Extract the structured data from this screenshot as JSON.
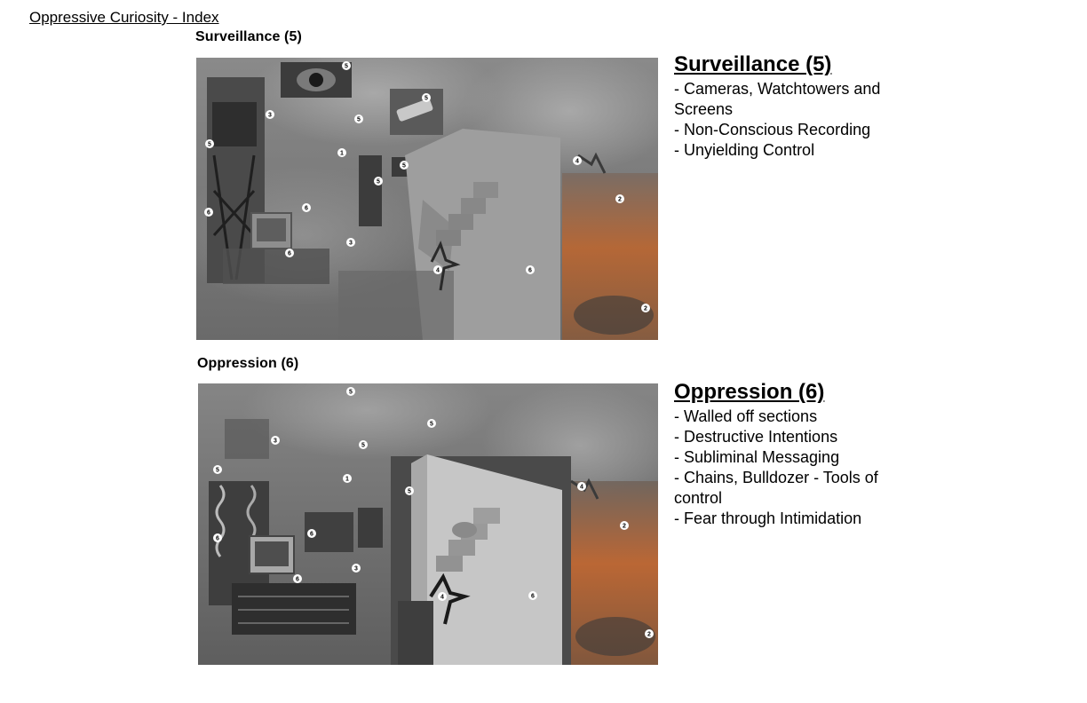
{
  "document": {
    "index_link": "Oppressive Curiosity - Index"
  },
  "sections": [
    {
      "label": "Surveillance (5)",
      "title": "Surveillance (5)",
      "items": [
        "- Cameras, Watchtowers and Screens",
        "- Non-Conscious Recording",
        "- Unyielding Control"
      ],
      "markers": [
        "5",
        "5",
        "3",
        "5",
        "5",
        "1",
        "5",
        "5",
        "4",
        "6",
        "6",
        "2",
        "3",
        "6",
        "4",
        "6",
        "2"
      ]
    },
    {
      "label": "Oppression (6)",
      "title": "Oppression (6)",
      "items": [
        "- Walled off sections",
        "- Destructive Intentions",
        "- Subliminal Messaging",
        "- Chains, Bulldozer - Tools of control",
        "- Fear through Intimidation"
      ],
      "markers": [
        "5",
        "3",
        "5",
        "5",
        "1",
        "5",
        "4",
        "5",
        "2",
        "6",
        "6",
        "3",
        "6",
        "4",
        "6",
        "2"
      ]
    }
  ],
  "colors": {
    "background": "#ffffff",
    "text": "#000000",
    "collage_gray": "#6b6b6b",
    "fire": "#c8662b"
  }
}
